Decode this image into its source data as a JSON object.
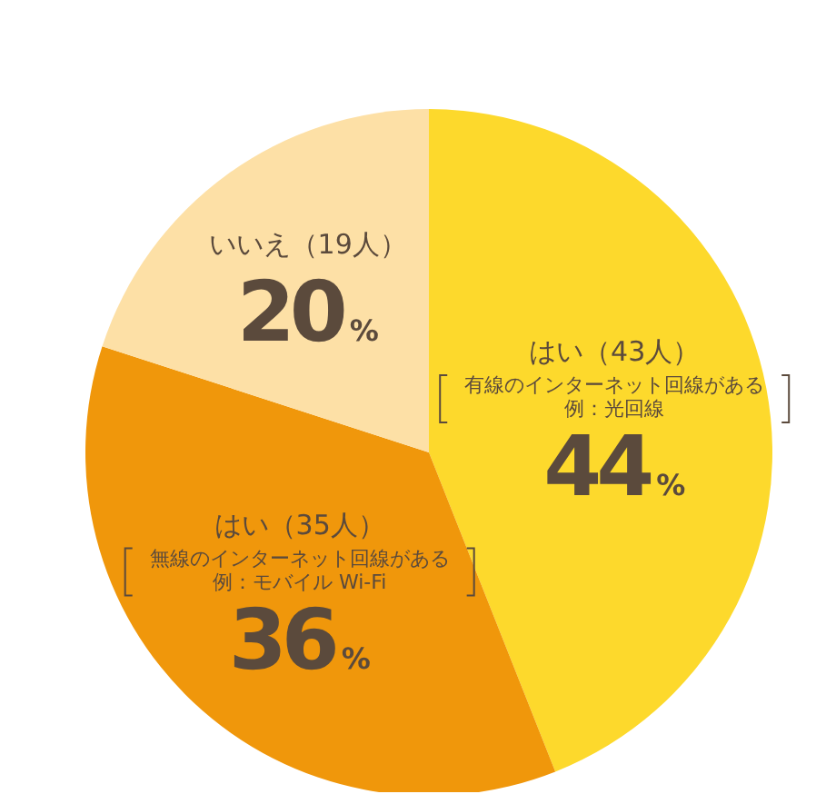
{
  "chart_data": {
    "type": "pie",
    "categories": [
      "はい（43人）",
      "はい（35人）",
      "いいえ（19人）"
    ],
    "values": [
      44,
      36,
      20
    ],
    "colors": [
      "#fdd92c",
      "#f0970b",
      "#fde0a6"
    ],
    "data_labels": true,
    "value_labels": [
      "44%",
      "36%",
      "20%"
    ],
    "annotations": [
      "有線のインターネット回線がある",
      "例：光回線",
      "無線のインターネット回線がある",
      "例：モバイル Wi-Fi"
    ],
    "legend": false
  }
}
